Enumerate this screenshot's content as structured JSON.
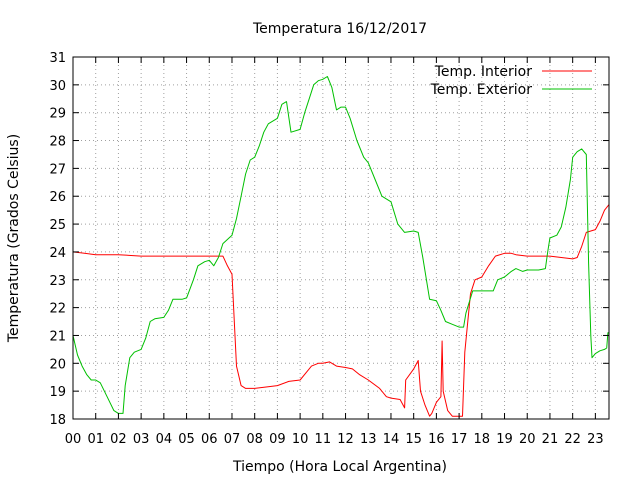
{
  "chart_data": {
    "type": "line",
    "title": "Temperatura 16/12/2017",
    "xlabel": "Tiempo (Hora Local Argentina)",
    "ylabel": "Temperatura (Grados Celsius)",
    "xlim": [
      0,
      23.6
    ],
    "ylim": [
      18,
      31
    ],
    "x_ticks": [
      0,
      1,
      2,
      3,
      4,
      5,
      6,
      7,
      8,
      9,
      10,
      11,
      12,
      13,
      14,
      15,
      16,
      17,
      18,
      19,
      20,
      21,
      22,
      23
    ],
    "x_tick_labels": [
      "00",
      "01",
      "02",
      "03",
      "04",
      "05",
      "06",
      "07",
      "08",
      "09",
      "10",
      "11",
      "12",
      "13",
      "14",
      "15",
      "16",
      "17",
      "18",
      "19",
      "20",
      "21",
      "22",
      "23"
    ],
    "y_ticks": [
      18,
      19,
      20,
      21,
      22,
      23,
      24,
      25,
      26,
      27,
      28,
      29,
      30,
      31
    ],
    "y_tick_labels": [
      "18",
      "19",
      "20",
      "21",
      "22",
      "23",
      "24",
      "25",
      "26",
      "27",
      "28",
      "29",
      "30",
      "31"
    ],
    "grid": true,
    "legend_position": "top-right",
    "series": [
      {
        "name": "Temp. Interior",
        "color": "#ff0000",
        "points": [
          [
            0.0,
            24.0
          ],
          [
            0.5,
            23.95
          ],
          [
            1.0,
            23.9
          ],
          [
            2.0,
            23.9
          ],
          [
            3.0,
            23.85
          ],
          [
            4.0,
            23.85
          ],
          [
            5.0,
            23.85
          ],
          [
            6.0,
            23.85
          ],
          [
            6.6,
            23.85
          ],
          [
            6.8,
            23.5
          ],
          [
            7.0,
            23.2
          ],
          [
            7.1,
            21.5
          ],
          [
            7.2,
            19.9
          ],
          [
            7.4,
            19.2
          ],
          [
            7.6,
            19.1
          ],
          [
            8.0,
            19.1
          ],
          [
            8.5,
            19.15
          ],
          [
            9.0,
            19.2
          ],
          [
            9.5,
            19.35
          ],
          [
            10.0,
            19.4
          ],
          [
            10.3,
            19.7
          ],
          [
            10.5,
            19.9
          ],
          [
            10.8,
            20.0
          ],
          [
            11.0,
            20.0
          ],
          [
            11.3,
            20.05
          ],
          [
            11.6,
            19.9
          ],
          [
            12.0,
            19.85
          ],
          [
            12.3,
            19.8
          ],
          [
            12.6,
            19.6
          ],
          [
            13.0,
            19.4
          ],
          [
            13.5,
            19.1
          ],
          [
            13.8,
            18.8
          ],
          [
            14.0,
            18.75
          ],
          [
            14.4,
            18.7
          ],
          [
            14.6,
            18.4
          ],
          [
            14.65,
            19.4
          ],
          [
            15.0,
            19.8
          ],
          [
            15.2,
            20.1
          ],
          [
            15.3,
            19.0
          ],
          [
            15.5,
            18.5
          ],
          [
            15.7,
            18.1
          ],
          [
            15.8,
            18.2
          ],
          [
            16.0,
            18.6
          ],
          [
            16.2,
            18.8
          ],
          [
            16.25,
            20.8
          ],
          [
            16.3,
            19.0
          ],
          [
            16.5,
            18.3
          ],
          [
            16.7,
            18.1
          ],
          [
            17.0,
            18.1
          ],
          [
            17.15,
            18.1
          ],
          [
            17.25,
            20.4
          ],
          [
            17.5,
            22.5
          ],
          [
            17.7,
            23.0
          ],
          [
            18.0,
            23.1
          ],
          [
            18.3,
            23.5
          ],
          [
            18.6,
            23.85
          ],
          [
            19.0,
            23.95
          ],
          [
            19.3,
            23.95
          ],
          [
            19.5,
            23.9
          ],
          [
            20.0,
            23.85
          ],
          [
            20.5,
            23.85
          ],
          [
            21.0,
            23.85
          ],
          [
            21.5,
            23.8
          ],
          [
            22.0,
            23.75
          ],
          [
            22.2,
            23.8
          ],
          [
            22.4,
            24.2
          ],
          [
            22.6,
            24.7
          ],
          [
            22.8,
            24.75
          ],
          [
            23.0,
            24.8
          ],
          [
            23.2,
            25.1
          ],
          [
            23.4,
            25.5
          ],
          [
            23.6,
            25.7
          ]
        ]
      },
      {
        "name": "Temp. Exterior",
        "color": "#00c000",
        "points": [
          [
            0.0,
            21.0
          ],
          [
            0.2,
            20.3
          ],
          [
            0.4,
            19.9
          ],
          [
            0.6,
            19.6
          ],
          [
            0.8,
            19.4
          ],
          [
            1.0,
            19.4
          ],
          [
            1.2,
            19.3
          ],
          [
            1.5,
            18.8
          ],
          [
            1.8,
            18.3
          ],
          [
            2.0,
            18.2
          ],
          [
            2.2,
            18.2
          ],
          [
            2.3,
            19.2
          ],
          [
            2.5,
            20.2
          ],
          [
            2.7,
            20.4
          ],
          [
            3.0,
            20.5
          ],
          [
            3.2,
            20.9
          ],
          [
            3.4,
            21.5
          ],
          [
            3.6,
            21.6
          ],
          [
            4.0,
            21.65
          ],
          [
            4.2,
            21.9
          ],
          [
            4.4,
            22.3
          ],
          [
            4.8,
            22.3
          ],
          [
            5.0,
            22.35
          ],
          [
            5.3,
            23.0
          ],
          [
            5.5,
            23.5
          ],
          [
            5.8,
            23.65
          ],
          [
            6.0,
            23.7
          ],
          [
            6.2,
            23.5
          ],
          [
            6.4,
            23.8
          ],
          [
            6.6,
            24.3
          ],
          [
            7.0,
            24.6
          ],
          [
            7.2,
            25.2
          ],
          [
            7.4,
            26.0
          ],
          [
            7.6,
            26.8
          ],
          [
            7.8,
            27.3
          ],
          [
            8.0,
            27.4
          ],
          [
            8.2,
            27.8
          ],
          [
            8.4,
            28.3
          ],
          [
            8.6,
            28.6
          ],
          [
            9.0,
            28.8
          ],
          [
            9.2,
            29.3
          ],
          [
            9.4,
            29.4
          ],
          [
            9.6,
            28.3
          ],
          [
            10.0,
            28.4
          ],
          [
            10.2,
            29.0
          ],
          [
            10.4,
            29.5
          ],
          [
            10.6,
            30.0
          ],
          [
            10.8,
            30.15
          ],
          [
            11.0,
            30.2
          ],
          [
            11.2,
            30.3
          ],
          [
            11.4,
            29.9
          ],
          [
            11.6,
            29.1
          ],
          [
            11.8,
            29.2
          ],
          [
            12.0,
            29.2
          ],
          [
            12.2,
            28.8
          ],
          [
            12.5,
            28.0
          ],
          [
            12.8,
            27.4
          ],
          [
            13.0,
            27.2
          ],
          [
            13.3,
            26.6
          ],
          [
            13.6,
            26.0
          ],
          [
            14.0,
            25.8
          ],
          [
            14.3,
            25.0
          ],
          [
            14.6,
            24.7
          ],
          [
            15.0,
            24.75
          ],
          [
            15.2,
            24.7
          ],
          [
            15.4,
            23.8
          ],
          [
            15.7,
            22.3
          ],
          [
            16.0,
            22.25
          ],
          [
            16.2,
            21.9
          ],
          [
            16.4,
            21.5
          ],
          [
            16.7,
            21.4
          ],
          [
            17.0,
            21.3
          ],
          [
            17.2,
            21.3
          ],
          [
            17.3,
            21.8
          ],
          [
            17.6,
            22.6
          ],
          [
            18.0,
            22.6
          ],
          [
            18.3,
            22.6
          ],
          [
            18.5,
            22.6
          ],
          [
            18.7,
            23.0
          ],
          [
            19.0,
            23.1
          ],
          [
            19.3,
            23.3
          ],
          [
            19.5,
            23.4
          ],
          [
            19.8,
            23.3
          ],
          [
            20.0,
            23.35
          ],
          [
            20.5,
            23.35
          ],
          [
            20.8,
            23.4
          ],
          [
            20.9,
            24.0
          ],
          [
            21.0,
            24.5
          ],
          [
            21.3,
            24.6
          ],
          [
            21.5,
            24.9
          ],
          [
            21.7,
            25.6
          ],
          [
            21.9,
            26.6
          ],
          [
            22.0,
            27.4
          ],
          [
            22.2,
            27.6
          ],
          [
            22.4,
            27.7
          ],
          [
            22.6,
            27.5
          ],
          [
            22.7,
            23.6
          ],
          [
            22.8,
            21.0
          ],
          [
            22.85,
            20.2
          ],
          [
            23.0,
            20.35
          ],
          [
            23.2,
            20.45
          ],
          [
            23.4,
            20.5
          ],
          [
            23.5,
            20.55
          ],
          [
            23.55,
            21.1
          ],
          [
            23.6,
            21.1
          ]
        ]
      }
    ]
  }
}
